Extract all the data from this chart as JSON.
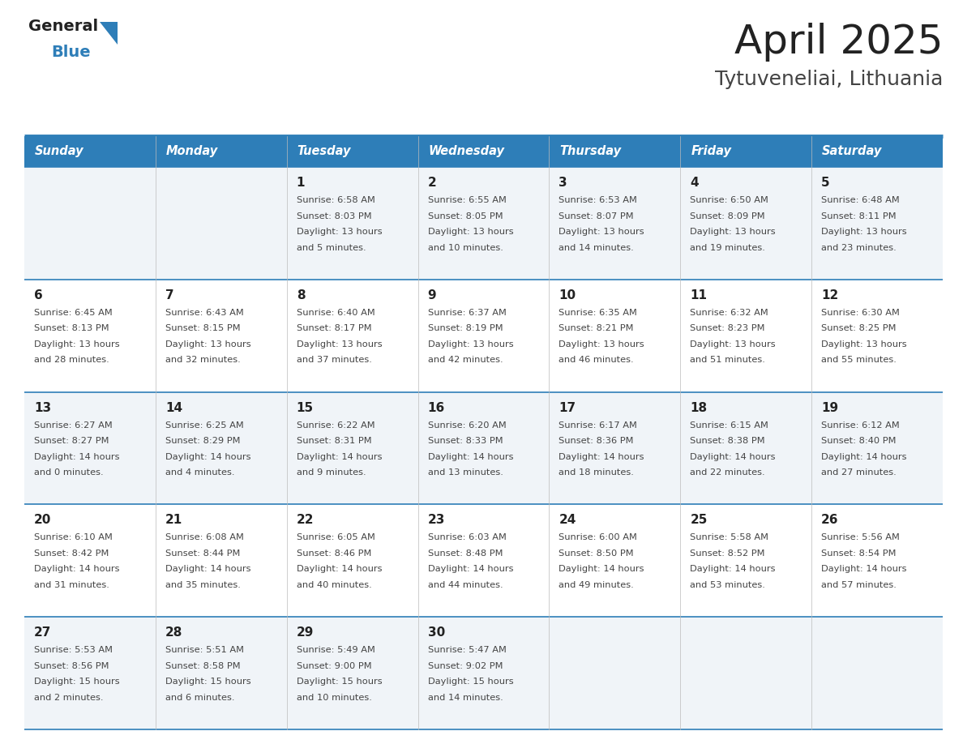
{
  "title": "April 2025",
  "subtitle": "Tytuveneliai, Lithuania",
  "days_of_week": [
    "Sunday",
    "Monday",
    "Tuesday",
    "Wednesday",
    "Thursday",
    "Friday",
    "Saturday"
  ],
  "header_bg": "#2E7EB8",
  "header_text": "#FFFFFF",
  "row_bg_light": "#F0F4F8",
  "row_bg_white": "#FFFFFF",
  "cell_text_color": "#444444",
  "day_number_color": "#222222",
  "separator_color": "#2E7EB8",
  "title_color": "#222222",
  "subtitle_color": "#444444",
  "logo_general_color": "#222222",
  "logo_blue_color": "#2E7EB8",
  "calendar_data": [
    [
      {
        "day": null,
        "sunrise": null,
        "sunset": null,
        "daylight": null
      },
      {
        "day": null,
        "sunrise": null,
        "sunset": null,
        "daylight": null
      },
      {
        "day": 1,
        "sunrise": "6:58 AM",
        "sunset": "8:03 PM",
        "daylight": "13 hours\nand 5 minutes."
      },
      {
        "day": 2,
        "sunrise": "6:55 AM",
        "sunset": "8:05 PM",
        "daylight": "13 hours\nand 10 minutes."
      },
      {
        "day": 3,
        "sunrise": "6:53 AM",
        "sunset": "8:07 PM",
        "daylight": "13 hours\nand 14 minutes."
      },
      {
        "day": 4,
        "sunrise": "6:50 AM",
        "sunset": "8:09 PM",
        "daylight": "13 hours\nand 19 minutes."
      },
      {
        "day": 5,
        "sunrise": "6:48 AM",
        "sunset": "8:11 PM",
        "daylight": "13 hours\nand 23 minutes."
      }
    ],
    [
      {
        "day": 6,
        "sunrise": "6:45 AM",
        "sunset": "8:13 PM",
        "daylight": "13 hours\nand 28 minutes."
      },
      {
        "day": 7,
        "sunrise": "6:43 AM",
        "sunset": "8:15 PM",
        "daylight": "13 hours\nand 32 minutes."
      },
      {
        "day": 8,
        "sunrise": "6:40 AM",
        "sunset": "8:17 PM",
        "daylight": "13 hours\nand 37 minutes."
      },
      {
        "day": 9,
        "sunrise": "6:37 AM",
        "sunset": "8:19 PM",
        "daylight": "13 hours\nand 42 minutes."
      },
      {
        "day": 10,
        "sunrise": "6:35 AM",
        "sunset": "8:21 PM",
        "daylight": "13 hours\nand 46 minutes."
      },
      {
        "day": 11,
        "sunrise": "6:32 AM",
        "sunset": "8:23 PM",
        "daylight": "13 hours\nand 51 minutes."
      },
      {
        "day": 12,
        "sunrise": "6:30 AM",
        "sunset": "8:25 PM",
        "daylight": "13 hours\nand 55 minutes."
      }
    ],
    [
      {
        "day": 13,
        "sunrise": "6:27 AM",
        "sunset": "8:27 PM",
        "daylight": "14 hours\nand 0 minutes."
      },
      {
        "day": 14,
        "sunrise": "6:25 AM",
        "sunset": "8:29 PM",
        "daylight": "14 hours\nand 4 minutes."
      },
      {
        "day": 15,
        "sunrise": "6:22 AM",
        "sunset": "8:31 PM",
        "daylight": "14 hours\nand 9 minutes."
      },
      {
        "day": 16,
        "sunrise": "6:20 AM",
        "sunset": "8:33 PM",
        "daylight": "14 hours\nand 13 minutes."
      },
      {
        "day": 17,
        "sunrise": "6:17 AM",
        "sunset": "8:36 PM",
        "daylight": "14 hours\nand 18 minutes."
      },
      {
        "day": 18,
        "sunrise": "6:15 AM",
        "sunset": "8:38 PM",
        "daylight": "14 hours\nand 22 minutes."
      },
      {
        "day": 19,
        "sunrise": "6:12 AM",
        "sunset": "8:40 PM",
        "daylight": "14 hours\nand 27 minutes."
      }
    ],
    [
      {
        "day": 20,
        "sunrise": "6:10 AM",
        "sunset": "8:42 PM",
        "daylight": "14 hours\nand 31 minutes."
      },
      {
        "day": 21,
        "sunrise": "6:08 AM",
        "sunset": "8:44 PM",
        "daylight": "14 hours\nand 35 minutes."
      },
      {
        "day": 22,
        "sunrise": "6:05 AM",
        "sunset": "8:46 PM",
        "daylight": "14 hours\nand 40 minutes."
      },
      {
        "day": 23,
        "sunrise": "6:03 AM",
        "sunset": "8:48 PM",
        "daylight": "14 hours\nand 44 minutes."
      },
      {
        "day": 24,
        "sunrise": "6:00 AM",
        "sunset": "8:50 PM",
        "daylight": "14 hours\nand 49 minutes."
      },
      {
        "day": 25,
        "sunrise": "5:58 AM",
        "sunset": "8:52 PM",
        "daylight": "14 hours\nand 53 minutes."
      },
      {
        "day": 26,
        "sunrise": "5:56 AM",
        "sunset": "8:54 PM",
        "daylight": "14 hours\nand 57 minutes."
      }
    ],
    [
      {
        "day": 27,
        "sunrise": "5:53 AM",
        "sunset": "8:56 PM",
        "daylight": "15 hours\nand 2 minutes."
      },
      {
        "day": 28,
        "sunrise": "5:51 AM",
        "sunset": "8:58 PM",
        "daylight": "15 hours\nand 6 minutes."
      },
      {
        "day": 29,
        "sunrise": "5:49 AM",
        "sunset": "9:00 PM",
        "daylight": "15 hours\nand 10 minutes."
      },
      {
        "day": 30,
        "sunrise": "5:47 AM",
        "sunset": "9:02 PM",
        "daylight": "15 hours\nand 14 minutes."
      },
      {
        "day": null,
        "sunrise": null,
        "sunset": null,
        "daylight": null
      },
      {
        "day": null,
        "sunrise": null,
        "sunset": null,
        "daylight": null
      },
      {
        "day": null,
        "sunrise": null,
        "sunset": null,
        "daylight": null
      }
    ]
  ]
}
